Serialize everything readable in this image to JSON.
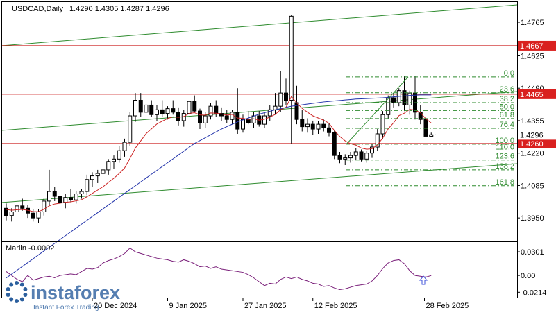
{
  "chart_data": [
    {
      "type": "candlestick",
      "symbol_header": "USDCAD,Daily",
      "ohlc_header": [
        "1.4290",
        "1.4305",
        "1.4287",
        "1.4296"
      ],
      "x_axis_labels": [
        "20 Dec 2024",
        "9 Jan 2025",
        "27 Jan 2025",
        "12 Feb 2025",
        "28 Feb 2025"
      ],
      "y_axis_ticks": [
        "1.4765",
        "1.4625",
        "1.4490",
        "1.4355",
        "1.4220",
        "1.4085",
        "1.3950"
      ],
      "ylim": [
        1.3858,
        1.4843
      ],
      "current_price": "1.4296",
      "horizontal_levels": [
        {
          "label": "1.4667",
          "value": 1.4667
        },
        {
          "label": "1.4465",
          "value": 1.4465
        },
        {
          "label": "1.4260",
          "value": 1.426
        }
      ],
      "fibonacci_levels": [
        {
          "label": "0.0",
          "value": 1.4537
        },
        {
          "label": "23.6",
          "value": 1.4471
        },
        {
          "label": "38.2",
          "value": 1.443
        },
        {
          "label": "50.0",
          "value": 1.4397
        },
        {
          "label": "61.8",
          "value": 1.4364
        },
        {
          "label": "76.4",
          "value": 1.4323
        },
        {
          "label": "100.0",
          "value": 1.4257
        },
        {
          "label": "110.0",
          "value": 1.4229
        },
        {
          "label": "123.6",
          "value": 1.4191
        },
        {
          "label": "138.2",
          "value": 1.415
        },
        {
          "label": "161.8",
          "value": 1.4084
        }
      ],
      "candles": [
        [
          1.399,
          1.401,
          1.394,
          1.396
        ],
        [
          1.396,
          1.399,
          1.3935,
          1.3975
        ],
        [
          1.3975,
          1.401,
          1.3965,
          1.4
        ],
        [
          1.4,
          1.403,
          1.398,
          1.399
        ],
        [
          1.399,
          1.4005,
          1.395,
          1.397
        ],
        [
          1.397,
          1.3985,
          1.3935,
          1.395
        ],
        [
          1.395,
          1.3985,
          1.393,
          1.3975
        ],
        [
          1.3975,
          1.403,
          1.396,
          1.402
        ],
        [
          1.402,
          1.415,
          1.4005,
          1.406
        ],
        [
          1.406,
          1.408,
          1.402,
          1.404
        ],
        [
          1.404,
          1.406,
          1.4005,
          1.4015
        ],
        [
          1.4015,
          1.405,
          1.399,
          1.4035
        ],
        [
          1.4035,
          1.407,
          1.4015,
          1.4025
        ],
        [
          1.4025,
          1.406,
          1.401,
          1.405
        ],
        [
          1.405,
          1.407,
          1.403,
          1.406
        ],
        [
          1.406,
          1.413,
          1.4045,
          1.411
        ],
        [
          1.411,
          1.414,
          1.408,
          1.4125
        ],
        [
          1.4125,
          1.415,
          1.4095,
          1.4135
        ],
        [
          1.4135,
          1.416,
          1.4115,
          1.415
        ],
        [
          1.415,
          1.4195,
          1.413,
          1.4185
        ],
        [
          1.4185,
          1.421,
          1.4155,
          1.4195
        ],
        [
          1.4195,
          1.425,
          1.418,
          1.423
        ],
        [
          1.423,
          1.428,
          1.4205,
          1.4265
        ],
        [
          1.4265,
          1.439,
          1.425,
          1.4375
        ],
        [
          1.4375,
          1.447,
          1.435,
          1.444
        ],
        [
          1.444,
          1.447,
          1.437,
          1.439
        ],
        [
          1.439,
          1.444,
          1.436,
          1.442
        ],
        [
          1.442,
          1.444,
          1.437,
          1.438
        ],
        [
          1.438,
          1.442,
          1.4355,
          1.44
        ],
        [
          1.44,
          1.444,
          1.437,
          1.4385
        ],
        [
          1.4385,
          1.4415,
          1.436,
          1.4405
        ],
        [
          1.4405,
          1.444,
          1.438,
          1.439
        ],
        [
          1.439,
          1.441,
          1.4335,
          1.4355
        ],
        [
          1.4355,
          1.44,
          1.433,
          1.4385
        ],
        [
          1.4385,
          1.445,
          1.437,
          1.4435
        ],
        [
          1.4435,
          1.446,
          1.439,
          1.4395
        ],
        [
          1.4395,
          1.4405,
          1.432,
          1.4345
        ],
        [
          1.4345,
          1.439,
          1.4325,
          1.4375
        ],
        [
          1.4375,
          1.443,
          1.436,
          1.4415
        ],
        [
          1.4415,
          1.444,
          1.437,
          1.4385
        ],
        [
          1.4385,
          1.441,
          1.4355,
          1.4375
        ],
        [
          1.4375,
          1.44,
          1.4345,
          1.436
        ],
        [
          1.436,
          1.44,
          1.434,
          1.439
        ],
        [
          1.439,
          1.449,
          1.43,
          1.432
        ],
        [
          1.432,
          1.438,
          1.4305,
          1.436
        ],
        [
          1.436,
          1.4395,
          1.434,
          1.4345
        ],
        [
          1.4345,
          1.439,
          1.4325,
          1.4375
        ],
        [
          1.4375,
          1.4395,
          1.433,
          1.434
        ],
        [
          1.434,
          1.439,
          1.4325,
          1.4375
        ],
        [
          1.4375,
          1.442,
          1.4355,
          1.44
        ],
        [
          1.44,
          1.447,
          1.438,
          1.4415
        ],
        [
          1.4415,
          1.456,
          1.439,
          1.447
        ],
        [
          1.447,
          1.453,
          1.442,
          1.444
        ],
        [
          1.444,
          1.4795,
          1.426,
          1.479
        ],
        [
          1.443,
          1.45,
          1.434,
          1.436
        ],
        [
          1.436,
          1.44,
          1.431,
          1.433
        ],
        [
          1.433,
          1.4365,
          1.4305,
          1.434
        ],
        [
          1.434,
          1.4355,
          1.4295,
          1.432
        ],
        [
          1.432,
          1.4355,
          1.43,
          1.434
        ],
        [
          1.434,
          1.436,
          1.431,
          1.4325
        ],
        [
          1.4325,
          1.4345,
          1.429,
          1.4305
        ],
        [
          1.4305,
          1.4315,
          1.4195,
          1.421
        ],
        [
          1.421,
          1.4225,
          1.4178,
          1.4195
        ],
        [
          1.4195,
          1.4215,
          1.417,
          1.42
        ],
        [
          1.42,
          1.4225,
          1.418,
          1.421
        ],
        [
          1.421,
          1.424,
          1.419,
          1.4225
        ],
        [
          1.4225,
          1.4235,
          1.4185,
          1.4195
        ],
        [
          1.4195,
          1.423,
          1.418,
          1.422
        ],
        [
          1.422,
          1.426,
          1.42,
          1.4245
        ],
        [
          1.4245,
          1.432,
          1.423,
          1.43
        ],
        [
          1.43,
          1.4395,
          1.428,
          1.438
        ],
        [
          1.438,
          1.446,
          1.4365,
          1.445
        ],
        [
          1.445,
          1.447,
          1.441,
          1.443
        ],
        [
          1.443,
          1.449,
          1.4415,
          1.448
        ],
        [
          1.448,
          1.454,
          1.4395,
          1.442
        ],
        [
          1.442,
          1.448,
          1.438,
          1.447
        ],
        [
          1.447,
          1.454,
          1.436,
          1.439
        ],
        [
          1.439,
          1.442,
          1.434,
          1.436
        ],
        [
          1.436,
          1.437,
          1.424,
          1.429
        ],
        [
          1.429,
          1.4305,
          1.4287,
          1.4296
        ]
      ],
      "moving_averages": [
        {
          "color": "#cc2222",
          "values": [
            1.3985,
            1.3982,
            1.3984,
            1.3985,
            1.3982,
            1.3976,
            1.3976,
            1.3986,
            1.4,
            1.4008,
            1.4011,
            1.4015,
            1.4017,
            1.4021,
            1.4026,
            1.4038,
            1.4052,
            1.4066,
            1.408,
            1.4098,
            1.4115,
            1.4135,
            1.4158,
            1.4198,
            1.4241,
            1.4271,
            1.4301,
            1.4321,
            1.4341,
            1.4353,
            1.4364,
            1.4371,
            1.4369,
            1.4372,
            1.4385,
            1.4388,
            1.4379,
            1.4378,
            1.4387,
            1.4386,
            1.4383,
            1.4378,
            1.4381,
            1.4366,
            1.4365,
            1.436,
            1.4363,
            1.4357,
            1.4361,
            1.437,
            1.4381,
            1.4401,
            1.4411,
            1.4455,
            1.4429,
            1.4406,
            1.439,
            1.4375,
            1.4366,
            1.4357,
            1.4344,
            1.4314,
            1.4289,
            1.4271,
            1.4259,
            1.4253,
            1.4241,
            1.4236,
            1.4238,
            1.4254,
            1.4283,
            1.4321,
            1.4346,
            1.4376,
            1.4386,
            1.4402,
            1.4399,
            1.4388,
            1.4363,
            1.4345
          ]
        },
        {
          "color": "#2233aa",
          "values": [
            1.37,
            1.3716,
            1.3732,
            1.3748,
            1.3764,
            1.378,
            1.3796,
            1.3812,
            1.3828,
            1.3844,
            1.386,
            1.3876,
            1.3892,
            1.3908,
            1.3924,
            1.394,
            1.3956,
            1.3972,
            1.3988,
            1.4004,
            1.402,
            1.4036,
            1.4052,
            1.4068,
            1.4084,
            1.41,
            1.4116,
            1.4132,
            1.4148,
            1.4164,
            1.418,
            1.4196,
            1.4212,
            1.4228,
            1.4244,
            1.426,
            1.4272,
            1.4284,
            1.4296,
            1.4308,
            1.432,
            1.433,
            1.434,
            1.435,
            1.4358,
            1.4366,
            1.4374,
            1.4382,
            1.4388,
            1.4394,
            1.44,
            1.4405,
            1.441,
            1.4415,
            1.4418,
            1.4421,
            1.4424,
            1.4427,
            1.443,
            1.4433,
            1.4435,
            1.4437,
            1.4439,
            1.4441,
            1.4443,
            1.4445,
            1.4446,
            1.4447,
            1.4448,
            1.4449,
            1.445,
            1.4452,
            1.4454,
            1.4456,
            1.4458,
            1.446,
            1.4461,
            1.4462,
            1.4462,
            1.4462
          ]
        }
      ]
    },
    {
      "type": "line",
      "indicator_header": "Marlin -0.0002",
      "y_axis_ticks": [
        "0.0301",
        "0.00",
        "-0.0214"
      ],
      "ylim": [
        -0.0282,
        0.0425
      ],
      "series": [
        {
          "color": "#7a1f7a",
          "values": [
            0.005,
            0.0,
            -0.005,
            -0.008,
            0.0,
            -0.006,
            -0.004,
            -0.002,
            -0.001,
            -0.003,
            0.0,
            0.001,
            0.002,
            0.001,
            0.005,
            0.009,
            0.008,
            0.01,
            0.016,
            0.019,
            0.021,
            0.024,
            0.028,
            0.035,
            0.03,
            0.028,
            0.026,
            0.024,
            0.022,
            0.021,
            0.02,
            0.018,
            0.017,
            0.02,
            0.018,
            0.015,
            0.011,
            0.012,
            0.009,
            0.011,
            0.008,
            0.007,
            0.006,
            0.005,
            0.004,
            0.001,
            -0.003,
            -0.008,
            -0.013,
            -0.01,
            -0.011,
            -0.005,
            -0.002,
            -0.004,
            -0.002,
            -0.005,
            -0.007,
            -0.01,
            -0.011,
            -0.014,
            -0.013,
            -0.016,
            -0.018,
            -0.017,
            -0.015,
            -0.013,
            -0.012,
            -0.011,
            -0.007,
            0.0,
            0.009,
            0.016,
            0.019,
            0.02,
            0.015,
            0.006,
            0.0,
            -0.001,
            -0.002,
            -0.0002
          ]
        }
      ]
    }
  ],
  "watermark": "instaforex",
  "watermark_tagline": "Instant Forex Trading"
}
